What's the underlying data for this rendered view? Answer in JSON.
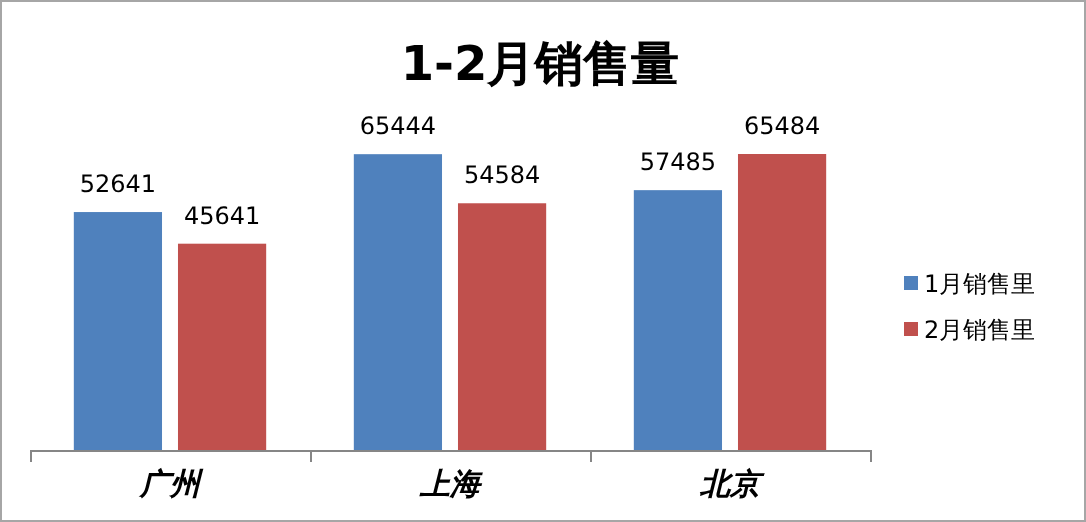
{
  "chart_data": {
    "type": "bar",
    "title": "1-2月销售量",
    "categories": [
      "广州",
      "上海",
      "北京"
    ],
    "series": [
      {
        "name": "1月销售里",
        "color": "#4f81bd",
        "values": [
          52641,
          65444,
          57485
        ]
      },
      {
        "name": "2月销售里",
        "color": "#c0504d",
        "values": [
          45641,
          54584,
          65484
        ]
      }
    ],
    "data_labels": true,
    "legend": "right"
  }
}
